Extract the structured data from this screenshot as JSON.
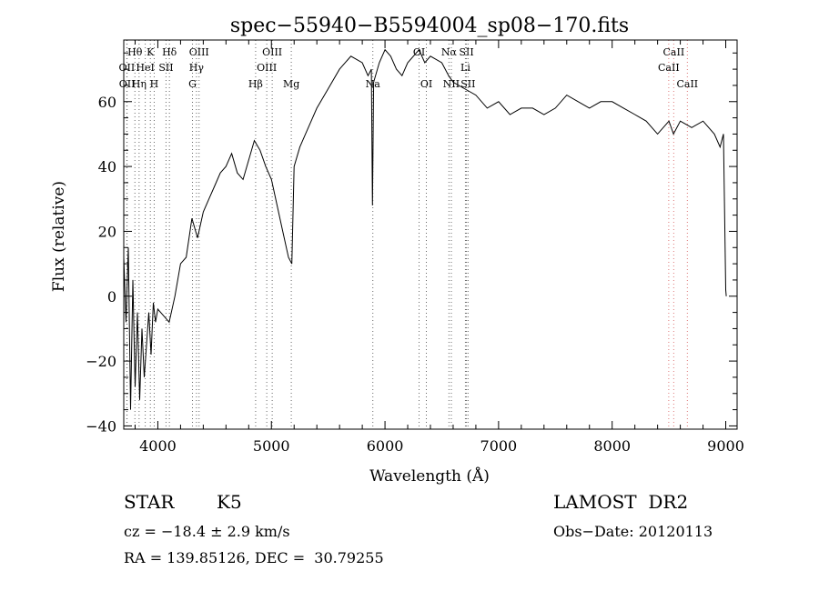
{
  "chart_data": {
    "type": "line",
    "title": "spec−55940−B5594004_sp08−170.fits",
    "xlabel": "Wavelength (Å)",
    "ylabel": "Flux (relative)",
    "xlim": [
      3700,
      9100
    ],
    "ylim": [
      -41,
      79
    ],
    "xticks": [
      4000,
      5000,
      6000,
      7000,
      8000,
      9000
    ],
    "yticks": [
      -40,
      -20,
      0,
      20,
      40,
      60
    ],
    "ytick_labels": [
      "−40",
      "−20",
      "0",
      "20",
      "40",
      "60"
    ],
    "series": [
      {
        "color": "#000000",
        "x": [
          3700,
          3720,
          3740,
          3760,
          3780,
          3800,
          3820,
          3840,
          3860,
          3880,
          3900,
          3920,
          3940,
          3960,
          3980,
          4000,
          4050,
          4100,
          4150,
          4200,
          4250,
          4300,
          4350,
          4400,
          4450,
          4500,
          4550,
          4600,
          4650,
          4700,
          4750,
          4800,
          4850,
          4900,
          4950,
          5000,
          5050,
          5100,
          5150,
          5180,
          5200,
          5250,
          5300,
          5400,
          5500,
          5600,
          5700,
          5800,
          5850,
          5880,
          5890,
          5900,
          5950,
          6000,
          6050,
          6100,
          6150,
          6200,
          6250,
          6300,
          6350,
          6400,
          6500,
          6560,
          6600,
          6700,
          6800,
          6900,
          7000,
          7100,
          7200,
          7300,
          7400,
          7500,
          7600,
          7700,
          7800,
          7900,
          8000,
          8100,
          8200,
          8300,
          8400,
          8500,
          8540,
          8600,
          8700,
          8800,
          8900,
          8950,
          8980,
          9000,
          9005
        ],
        "y": [
          12,
          -8,
          15,
          -35,
          5,
          -28,
          -5,
          -32,
          -10,
          -25,
          -15,
          -5,
          -18,
          -2,
          -8,
          -4,
          -6,
          -8,
          0,
          10,
          12,
          24,
          18,
          26,
          30,
          34,
          38,
          40,
          44,
          38,
          36,
          42,
          48,
          45,
          40,
          36,
          28,
          20,
          12,
          10,
          40,
          46,
          50,
          58,
          64,
          70,
          74,
          72,
          68,
          70,
          28,
          66,
          72,
          76,
          74,
          70,
          68,
          72,
          74,
          76,
          72,
          74,
          72,
          68,
          66,
          64,
          62,
          58,
          60,
          56,
          58,
          58,
          56,
          58,
          62,
          60,
          58,
          60,
          60,
          58,
          56,
          54,
          50,
          54,
          50,
          54,
          52,
          54,
          50,
          46,
          50,
          2,
          0
        ]
      }
    ],
    "spectral_lines": [
      {
        "label": "Hθ",
        "wavelength": 3798
      },
      {
        "label": "K",
        "wavelength": 3934
      },
      {
        "label": "Hδ",
        "wavelength": 4102
      },
      {
        "label": "OIII",
        "wavelength": 4363
      },
      {
        "label": "OIII",
        "wavelength": 5007
      },
      {
        "label": "OI",
        "wavelength": 6300
      },
      {
        "label": "Nα",
        "wavelength": 6563
      },
      {
        "label": "SII",
        "wavelength": 6717
      },
      {
        "label": "CaII",
        "wavelength": 8542
      },
      {
        "label": "OII",
        "wavelength": 3727
      },
      {
        "label": "HeI",
        "wavelength": 3889
      },
      {
        "label": "SII",
        "wavelength": 4072
      },
      {
        "label": "Hγ",
        "wavelength": 4340
      },
      {
        "label": "OIII",
        "wavelength": 4959
      },
      {
        "label": "Li",
        "wavelength": 6708
      },
      {
        "label": "CaII",
        "wavelength": 8498
      },
      {
        "label": "OII",
        "wavelength": 3729
      },
      {
        "label": "Hη",
        "wavelength": 3835
      },
      {
        "label": "H",
        "wavelength": 3968
      },
      {
        "label": "G",
        "wavelength": 4305
      },
      {
        "label": "Hβ",
        "wavelength": 4861
      },
      {
        "label": "Mg",
        "wavelength": 5175
      },
      {
        "label": "Na",
        "wavelength": 5893
      },
      {
        "label": "OI",
        "wavelength": 6364
      },
      {
        "label": "NII",
        "wavelength": 6584
      },
      {
        "label": "SII",
        "wavelength": 6731
      },
      {
        "label": "CaII",
        "wavelength": 8662
      }
    ],
    "grid": false
  },
  "info": {
    "object_class": "STAR",
    "subclass": "K5",
    "survey": "LAMOST  DR2",
    "cz": "cz = −18.4 ± 2.9 km/s",
    "obs_date": "Obs−Date: 20120113",
    "coords": "RA = 139.85126, DEC =  30.79255"
  }
}
